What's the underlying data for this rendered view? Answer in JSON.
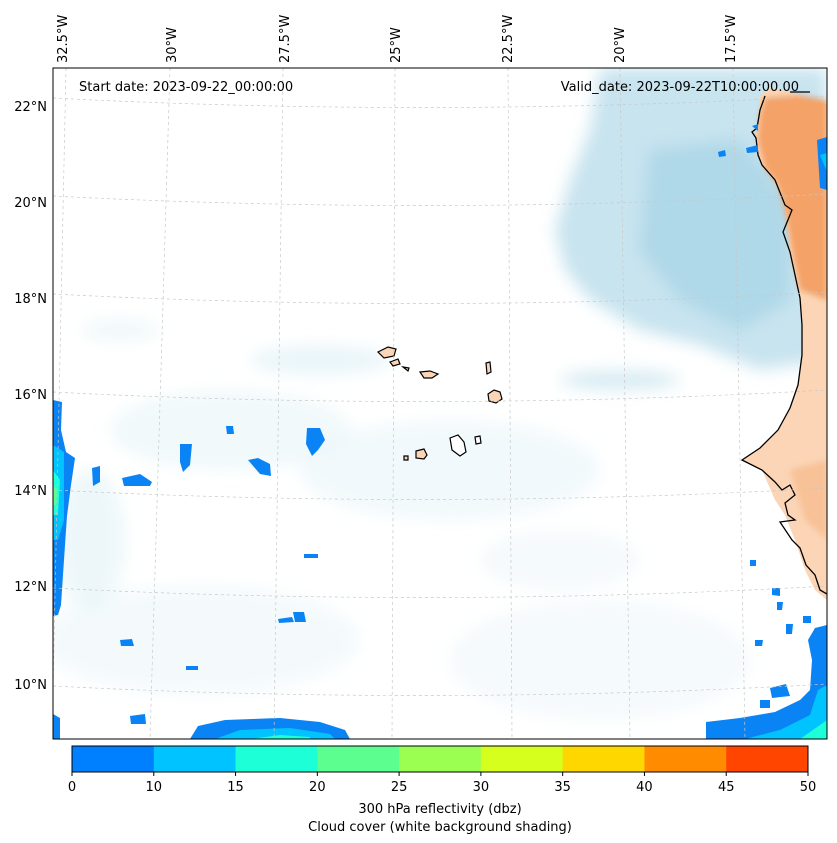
{
  "header": {
    "start_date": "Start date: 2023-09-22_00:00:00",
    "valid_date": "Valid_date: 2023-09-22T10:00:00.00"
  },
  "longitude_ticks": [
    "32.5°W",
    "30°W",
    "27.5°W",
    "25°W",
    "22.5°W",
    "20°W",
    "17.5°W"
  ],
  "latitude_ticks": [
    "22°N",
    "20°N",
    "18°N",
    "16°N",
    "14°N",
    "12°N",
    "10°N"
  ],
  "colorbar": {
    "tick_labels": [
      "0",
      "10",
      "15",
      "20",
      "25",
      "30",
      "35",
      "40",
      "45",
      "50"
    ],
    "colors": [
      "#0080ff",
      "#00c3ff",
      "#1dffd6",
      "#5cff8f",
      "#9bff52",
      "#d6ff1d",
      "#ffd700",
      "#ff8c00",
      "#ff4500"
    ],
    "label_line1": "300 hPa reflectivity (dbz)",
    "label_line2": "Cloud cover (white background shading)"
  },
  "colors": {
    "cloud": "#aad6e6",
    "land": "#f5a56a",
    "echo": "#0a84f5",
    "gridline": "#c8c8c8"
  }
}
